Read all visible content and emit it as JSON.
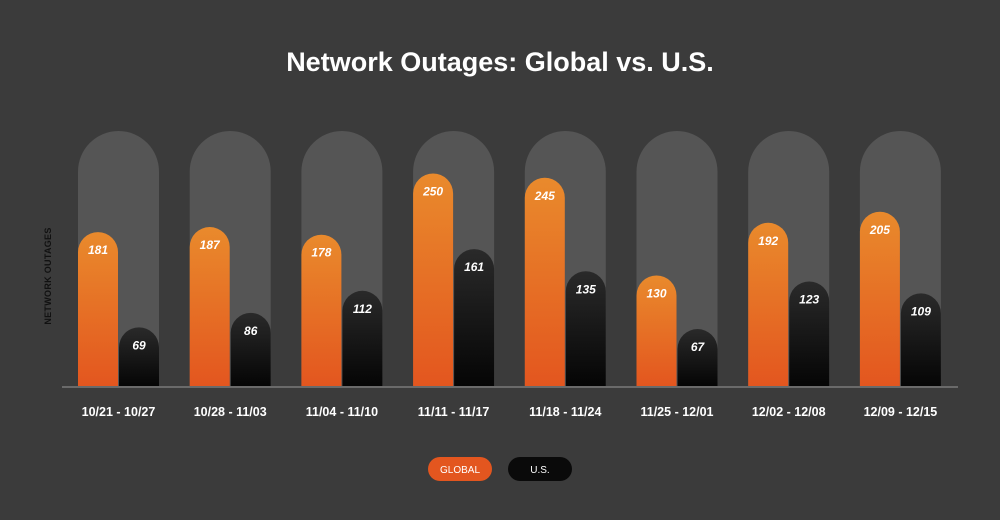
{
  "chart_data": {
    "type": "bar",
    "title": "Network Outages: Global vs. U.S.",
    "ylabel": "NETWORK OUTAGES",
    "xlabel": "",
    "ylim": [
      0,
      300
    ],
    "categories": [
      "10/21 - 10/27",
      "10/28 - 11/03",
      "11/04 - 11/10",
      "11/11 - 11/17",
      "11/18 - 11/24",
      "11/25 - 12/01",
      "12/02 - 12/08",
      "12/09 - 12/15"
    ],
    "series": [
      {
        "name": "GLOBAL",
        "values": [
          181,
          187,
          178,
          250,
          245,
          130,
          192,
          205
        ],
        "color": "#e8792a"
      },
      {
        "name": "U.S.",
        "values": [
          69,
          86,
          112,
          161,
          135,
          67,
          123,
          109
        ],
        "color": "#111111"
      }
    ],
    "legend_position": "bottom-center",
    "grid": false
  },
  "colors": {
    "background": "#3b3b3b",
    "track": "#555555",
    "global_top": "#e98a2c",
    "global_bottom": "#e3561f",
    "us_top": "#2a2a2a",
    "us_bottom": "#050505",
    "axis": "#6a6a6a"
  }
}
